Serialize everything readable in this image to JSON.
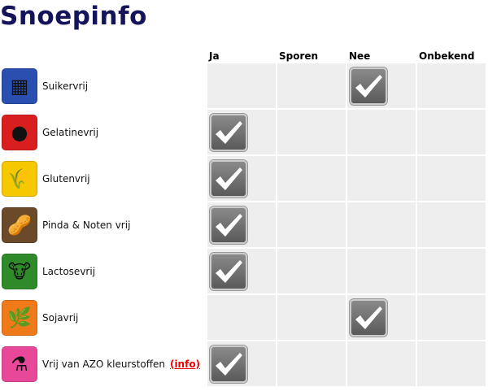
{
  "title": "Snoepinfo",
  "columns": [
    "Ja",
    "Sporen",
    "Nee",
    "Onbekend"
  ],
  "info_label": "(info)",
  "rows": [
    {
      "label": "Suikervrij",
      "icon": "sugar-cubes-icon",
      "color": "#2a4fb0",
      "glyph": "▦",
      "value": "Nee"
    },
    {
      "label": "Gelatinevrij",
      "icon": "gelatin-icon",
      "color": "#d81e1e",
      "glyph": "●",
      "value": "Ja"
    },
    {
      "label": "Glutenvrij",
      "icon": "wheat-icon",
      "color": "#f5c800",
      "glyph": "🌾",
      "value": "Ja"
    },
    {
      "label": "Pinda & Noten vrij",
      "icon": "peanut-icon",
      "color": "#6b4a2a",
      "glyph": "🥜",
      "value": "Ja"
    },
    {
      "label": "Lactosevrij",
      "icon": "cow-icon",
      "color": "#2f8a2a",
      "glyph": "🐮",
      "value": "Ja"
    },
    {
      "label": "Sojavrij",
      "icon": "soy-icon",
      "color": "#f07a1a",
      "glyph": "🌿",
      "value": "Nee"
    },
    {
      "label": "Vrij van AZO kleurstoffen",
      "icon": "flask-icon",
      "color": "#e8489a",
      "glyph": "⚗",
      "value": "Ja",
      "has_info": true
    }
  ]
}
